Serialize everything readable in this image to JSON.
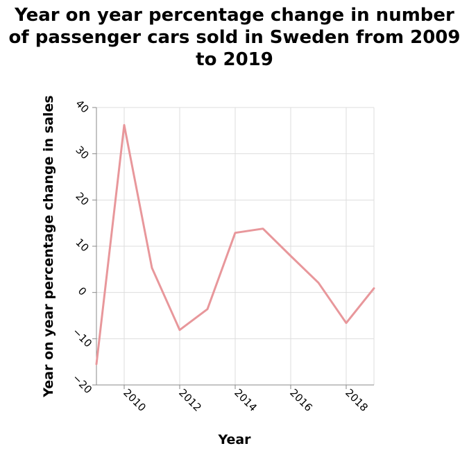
{
  "chart_data": {
    "type": "line",
    "title_lines": [
      "Year on year percentage change in number",
      "of passenger cars sold in Sweden from 2009",
      "to 2019"
    ],
    "xlabel": "Year",
    "ylabel": "Year on year percentage change in sales",
    "xlim": [
      2009,
      2019
    ],
    "ylim": [
      -20,
      40
    ],
    "x_ticks": [
      2010,
      2012,
      2014,
      2016,
      2018
    ],
    "x_tick_labels": [
      "2010",
      "2012",
      "2014",
      "2016",
      "2018"
    ],
    "y_ticks": [
      -20,
      -10,
      0,
      10,
      20,
      30,
      40
    ],
    "y_tick_labels": [
      "−20",
      "−10",
      "0",
      "10",
      "20",
      "30",
      "40"
    ],
    "grid": true,
    "series": [
      {
        "color": "#e8979b",
        "x": [
          2009,
          2010,
          2011,
          2012,
          2013,
          2014,
          2015,
          2016,
          2017,
          2018,
          2019
        ],
        "values": [
          -15.5,
          36.2,
          5.3,
          -8.1,
          -3.6,
          12.9,
          13.8,
          7.9,
          2.1,
          -6.6,
          0.9
        ]
      }
    ]
  }
}
